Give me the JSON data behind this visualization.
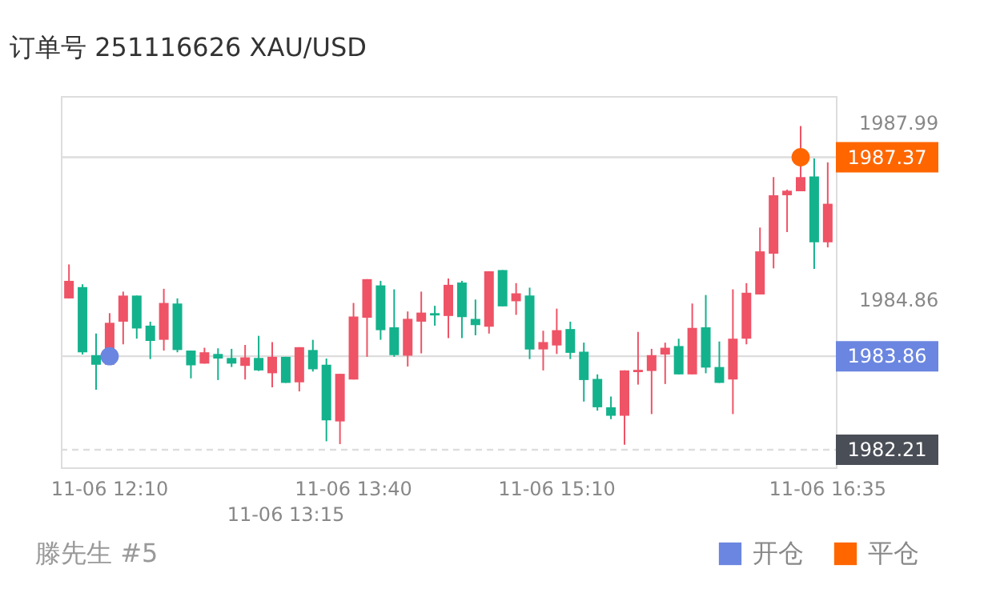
{
  "chart_data": {
    "type": "candlestick",
    "title": "订单号 251116626    XAU/USD",
    "categories": [
      null,
      null,
      null,
      "11-06 12:10",
      null,
      null,
      null,
      null,
      null,
      null,
      null,
      null,
      null,
      null,
      null,
      null,
      "11-06 13:15",
      null,
      null,
      null,
      null,
      "11-06 13:40",
      null,
      null,
      null,
      null,
      null,
      null,
      null,
      null,
      null,
      null,
      null,
      null,
      null,
      null,
      "11-06 15:10",
      null,
      null,
      null,
      null,
      null,
      null,
      null,
      null,
      null,
      null,
      null,
      null,
      null,
      null,
      null,
      null,
      null,
      null,
      null,
      "11-06 16:35"
    ],
    "ohlc": [
      [
        1984.88,
        1985.48,
        1984.88,
        1985.19
      ],
      [
        1985.08,
        1985.13,
        1983.89,
        1983.93
      ],
      [
        1983.88,
        1984.26,
        1983.27,
        1983.71
      ],
      [
        1983.71,
        1984.62,
        1983.71,
        1984.45
      ],
      [
        1984.47,
        1985.0,
        1984.07,
        1984.93
      ],
      [
        1984.93,
        1984.93,
        1984.17,
        1984.35
      ],
      [
        1984.4,
        1984.47,
        1983.81,
        1984.13
      ],
      [
        1984.15,
        1985.05,
        1983.96,
        1984.8
      ],
      [
        1984.79,
        1984.88,
        1983.93,
        1983.97
      ],
      [
        1983.96,
        1983.96,
        1983.47,
        1983.7
      ],
      [
        1983.73,
        1984.01,
        1983.73,
        1983.93
      ],
      [
        1983.9,
        1984.0,
        1983.44,
        1983.82
      ],
      [
        1983.83,
        1983.99,
        1983.67,
        1983.73
      ],
      [
        1983.69,
        1984.06,
        1983.45,
        1983.84
      ],
      [
        1983.83,
        1984.22,
        1983.6,
        1983.61
      ],
      [
        1983.56,
        1984.11,
        1983.31,
        1983.85
      ],
      [
        1983.85,
        1983.85,
        1983.39,
        1983.39
      ],
      [
        1983.4,
        1984.02,
        1983.24,
        1984.02
      ],
      [
        1983.97,
        1984.15,
        1983.59,
        1983.63
      ],
      [
        1983.71,
        1983.82,
        1982.36,
        1982.73
      ],
      [
        1982.71,
        1983.55,
        1982.31,
        1983.55
      ],
      [
        1983.45,
        1984.8,
        1983.45,
        1984.56
      ],
      [
        1984.54,
        1985.22,
        1983.85,
        1985.22
      ],
      [
        1985.11,
        1985.19,
        1984.15,
        1984.32
      ],
      [
        1984.37,
        1985.04,
        1983.85,
        1983.88
      ],
      [
        1983.87,
        1984.65,
        1983.68,
        1984.52
      ],
      [
        1984.47,
        1985.0,
        1983.91,
        1984.63
      ],
      [
        1984.62,
        1984.75,
        1984.4,
        1984.58
      ],
      [
        1984.57,
        1985.23,
        1984.18,
        1985.12
      ],
      [
        1985.16,
        1985.19,
        1984.18,
        1984.55
      ],
      [
        1984.52,
        1984.86,
        1984.23,
        1984.41
      ],
      [
        1984.38,
        1985.36,
        1984.26,
        1985.36
      ],
      [
        1985.38,
        1985.38,
        1984.74,
        1984.74
      ],
      [
        1984.83,
        1985.15,
        1984.59,
        1984.97
      ],
      [
        1984.93,
        1985.07,
        1983.81,
        1983.98
      ],
      [
        1983.98,
        1984.31,
        1983.61,
        1984.11
      ],
      [
        1984.05,
        1984.7,
        1983.9,
        1984.32
      ],
      [
        1984.34,
        1984.47,
        1983.81,
        1983.92
      ],
      [
        1983.94,
        1984.1,
        1983.06,
        1983.44
      ],
      [
        1983.46,
        1983.54,
        1982.9,
        1982.96
      ],
      [
        1982.96,
        1983.15,
        1982.75,
        1982.81
      ],
      [
        1982.81,
        1983.61,
        1982.3,
        1983.61
      ],
      [
        1983.58,
        1984.29,
        1983.36,
        1983.62
      ],
      [
        1983.6,
        1983.99,
        1982.84,
        1983.88
      ],
      [
        1983.89,
        1984.1,
        1983.37,
        1984.01
      ],
      [
        1984.04,
        1984.17,
        1983.54,
        1983.54
      ],
      [
        1983.54,
        1984.79,
        1983.54,
        1984.36
      ],
      [
        1984.37,
        1984.94,
        1983.56,
        1983.66
      ],
      [
        1983.67,
        1984.12,
        1983.39,
        1983.39
      ],
      [
        1983.45,
        1985.04,
        1982.84,
        1984.17
      ],
      [
        1984.17,
        1985.15,
        1984.07,
        1984.98
      ],
      [
        1984.95,
        1986.13,
        1984.95,
        1985.71
      ],
      [
        1985.67,
        1987.02,
        1985.41,
        1986.7
      ],
      [
        1986.7,
        1986.8,
        1986.05,
        1986.78
      ],
      [
        1986.77,
        1987.92,
        1986.77,
        1987.02
      ],
      [
        1987.03,
        1987.35,
        1985.4,
        1985.87
      ],
      [
        1985.87,
        1987.28,
        1985.78,
        1986.55
      ]
    ],
    "colors": [
      "#ef5366",
      "#13b28c",
      "#13b28c",
      "#ef5366",
      "#ef5366",
      "#13b28c",
      "#13b28c",
      "#ef5366",
      "#13b28c",
      "#13b28c",
      "#ef5366",
      "#13b28c",
      "#13b28c",
      "#ef5366",
      "#13b28c",
      "#ef5366",
      "#13b28c",
      "#ef5366",
      "#13b28c",
      "#13b28c",
      "#ef5366",
      "#ef5366",
      "#ef5366",
      "#13b28c",
      "#13b28c",
      "#ef5366",
      "#ef5366",
      "#13b28c",
      "#ef5366",
      "#13b28c",
      "#13b28c",
      "#ef5366",
      "#13b28c",
      "#ef5366",
      "#13b28c",
      "#ef5366",
      "#ef5366",
      "#13b28c",
      "#13b28c",
      "#13b28c",
      "#13b28c",
      "#ef5366",
      "#ef5366",
      "#ef5366",
      "#ef5366",
      "#13b28c",
      "#ef5366",
      "#13b28c",
      "#13b28c",
      "#ef5366",
      "#ef5366",
      "#ef5366",
      "#ef5366",
      "#ef5366",
      "#ef5366",
      "#13b28c",
      "#ef5366"
    ],
    "series": [
      {
        "name": "开仓",
        "type": "scatter",
        "color": "#6b86e0",
        "values": [
          null,
          null,
          null,
          1983.86,
          null,
          null,
          null,
          null,
          null,
          null,
          null,
          null,
          null,
          null,
          null,
          null,
          null,
          null,
          null,
          null,
          null,
          null,
          null,
          null,
          null,
          null,
          null,
          null,
          null,
          null,
          null,
          null,
          null,
          null,
          null,
          null,
          null,
          null,
          null,
          null,
          null,
          null,
          null,
          null,
          null,
          null,
          null,
          null,
          null,
          null,
          null,
          null,
          null,
          null,
          null,
          null,
          null
        ]
      },
      {
        "name": "平仓",
        "type": "scatter",
        "color": "#ff6600",
        "values": [
          null,
          null,
          null,
          null,
          null,
          null,
          null,
          null,
          null,
          null,
          null,
          null,
          null,
          null,
          null,
          null,
          null,
          null,
          null,
          null,
          null,
          null,
          null,
          null,
          null,
          null,
          null,
          null,
          null,
          null,
          null,
          null,
          null,
          null,
          null,
          null,
          null,
          null,
          null,
          null,
          null,
          null,
          null,
          null,
          null,
          null,
          null,
          null,
          null,
          null,
          null,
          null,
          null,
          null,
          1987.37,
          null,
          null
        ]
      }
    ],
    "marker": "circle",
    "ylim": [
      1981.9,
      1988.45
    ],
    "yticks": [
      1984.86,
      1987.99
    ],
    "ref_lines": [
      {
        "axis": "y",
        "value": 1987.37,
        "label": "1987.37",
        "color": "#dddddd"
      },
      {
        "axis": "y",
        "value": 1983.86,
        "label": "1983.86",
        "color": "#dddddd"
      },
      {
        "axis": "y",
        "value": 1982.21,
        "label": "1982.21",
        "color": "#dddddd",
        "line_style": "dashed"
      }
    ],
    "legend": "bottom right",
    "annotations": [
      "滕先生 #5"
    ]
  }
}
